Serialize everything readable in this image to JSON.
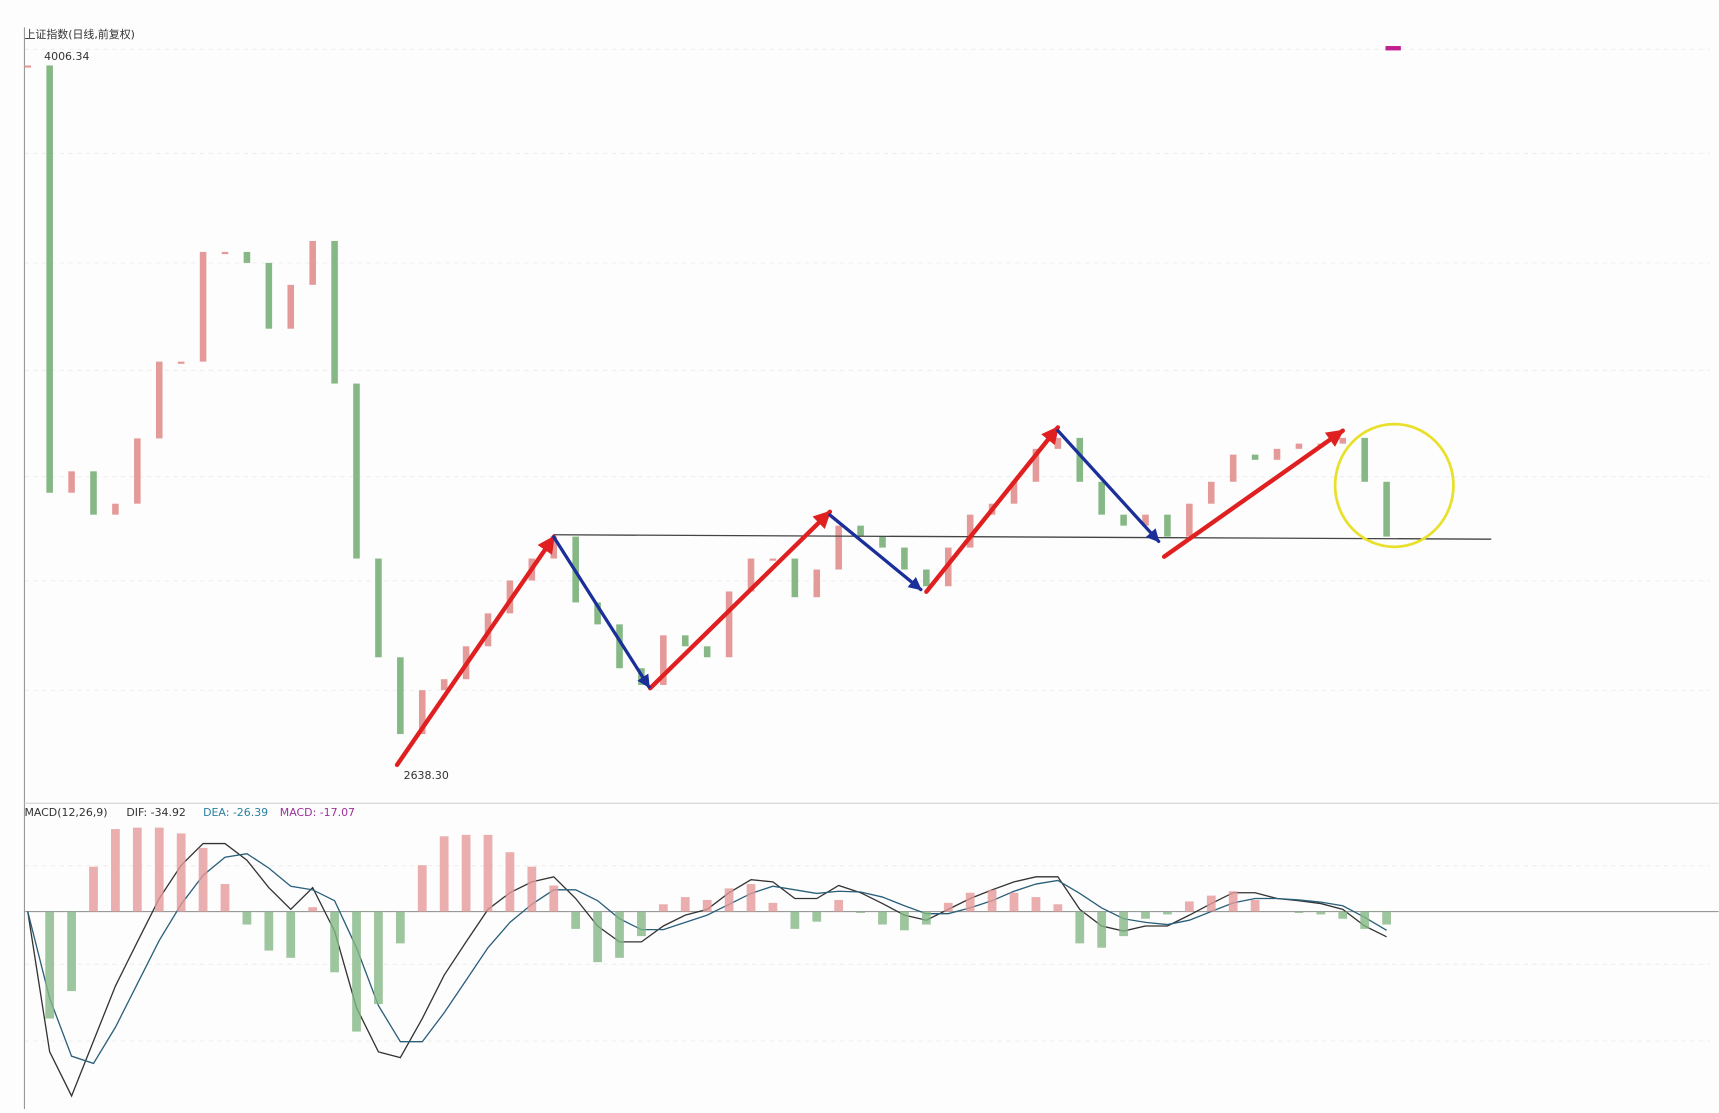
{
  "chart_data": [
    {
      "type": "price",
      "title": "上证指数(日线,前复权)",
      "max_label": "4006.34",
      "min_label": "2638.30",
      "up_color": "#e59a9a",
      "down_color": "#86b886",
      "ylim": [
        2600,
        4100
      ],
      "values": [
        3981,
        3163,
        3204,
        3121,
        3142,
        3267,
        3414,
        3414,
        3624,
        3624,
        3603,
        3477,
        3561,
        3645,
        3372,
        3037,
        2848,
        2701,
        2785,
        2806,
        2869,
        2932,
        2995,
        3037,
        3079,
        2953,
        2911,
        2827,
        2795,
        2890,
        2869,
        2848,
        2974,
        3037,
        3037,
        2963,
        3016,
        3100,
        3079,
        3058,
        3016,
        2984,
        3058,
        3121,
        3142,
        3184,
        3247,
        3268,
        3184,
        3121,
        3100,
        3121,
        3079,
        3142,
        3184,
        3236,
        3226,
        3247,
        3257,
        3257,
        3268,
        3184,
        3079
      ]
    },
    {
      "type": "macd",
      "title": "MACD(12,26,9)",
      "dif_label": "DIF: -34.92",
      "dea_label": "DEA: -26.39",
      "macd_label": "MACD: -17.07",
      "ylim": [
        -270,
        130
      ],
      "series": [
        {
          "name": "DIF",
          "color": "#333333",
          "values": [
            0,
            -194,
            -255,
            -179,
            -103,
            -42,
            18,
            64,
            94,
            94,
            71,
            33,
            3,
            33,
            -27,
            -133,
            -194,
            -202,
            -148,
            -88,
            -42,
            3,
            26,
            41,
            48,
            18,
            -20,
            -42,
            -42,
            -20,
            -5,
            3,
            26,
            44,
            41,
            18,
            18,
            36,
            26,
            11,
            -5,
            -12,
            3,
            18,
            30,
            41,
            48,
            48,
            3,
            -20,
            -27,
            -20,
            -20,
            -5,
            11,
            26,
            26,
            18,
            15,
            11,
            3,
            -20,
            -35
          ]
        },
        {
          "name": "DEA",
          "color": "#2a5f7a",
          "values": [
            0,
            -120,
            -200,
            -210,
            -160,
            -100,
            -40,
            10,
            50,
            75,
            80,
            60,
            35,
            30,
            15,
            -50,
            -130,
            -180,
            -180,
            -140,
            -95,
            -50,
            -15,
            10,
            30,
            30,
            15,
            -10,
            -25,
            -25,
            -15,
            -5,
            10,
            25,
            35,
            30,
            25,
            28,
            27,
            20,
            8,
            -3,
            -3,
            5,
            15,
            28,
            38,
            43,
            25,
            5,
            -10,
            -15,
            -18,
            -12,
            0,
            12,
            18,
            18,
            16,
            13,
            8,
            -8,
            -26
          ]
        },
        {
          "name": "MACD",
          "color": "#e59a9a",
          "down_color": "#86b886",
          "values": [
            0,
            -148,
            -110,
            62,
            114,
            116,
            116,
            108,
            88,
            38,
            -18,
            -54,
            -64,
            6,
            -84,
            -166,
            -128,
            -44,
            64,
            104,
            106,
            106,
            82,
            62,
            36,
            -24,
            -70,
            -64,
            -34,
            10,
            20,
            16,
            32,
            38,
            12,
            -24,
            -14,
            16,
            -2,
            -18,
            -26,
            -18,
            12,
            26,
            30,
            26,
            20,
            10,
            -44,
            -50,
            -34,
            -10,
            -4,
            14,
            22,
            28,
            16,
            0,
            -2,
            -4,
            -10,
            -24,
            -18
          ]
        }
      ]
    }
  ]
}
